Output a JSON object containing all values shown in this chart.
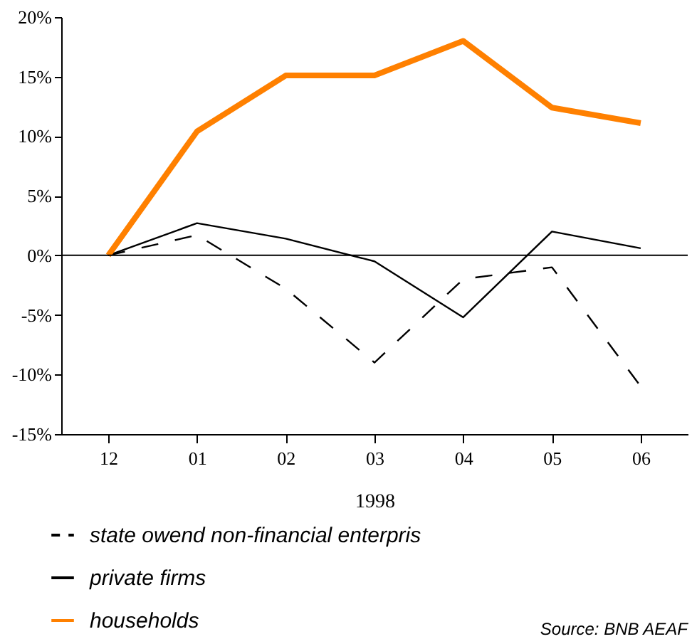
{
  "chart_data": {
    "type": "line",
    "xlabel": "1998",
    "categories": [
      "12",
      "01",
      "02",
      "03",
      "04",
      "05",
      "06"
    ],
    "series": [
      {
        "name": "state owend non-financial enterpris",
        "color": "#000000",
        "line_style": "dashed",
        "values": [
          0,
          1.7,
          -2.8,
          -9,
          -2,
          -1,
          -11
        ]
      },
      {
        "name": "private firms",
        "color": "#000000",
        "values": [
          0,
          2.7,
          1.4,
          -0.5,
          -5.2,
          2.0,
          0.6
        ]
      },
      {
        "name": "households",
        "color": "#ff8000",
        "values": [
          0,
          10.4,
          15.1,
          15.1,
          18.0,
          12.4,
          11.1
        ]
      }
    ],
    "ylim": [
      -15,
      20
    ],
    "yticks": [
      {
        "value": -15,
        "label": "-15%"
      },
      {
        "value": -10,
        "label": "-10%"
      },
      {
        "value": -5,
        "label": "-5%"
      },
      {
        "value": 0,
        "label": "0%"
      },
      {
        "value": 5,
        "label": "5%"
      },
      {
        "value": 10,
        "label": "10%"
      },
      {
        "value": 15,
        "label": "15%"
      },
      {
        "value": 20,
        "label": "20%"
      }
    ],
    "ref_lines": [
      {
        "axis": "y",
        "value": 0,
        "color": "#000000"
      }
    ],
    "legend": "bottom",
    "grid": false,
    "marker": "none",
    "annotations": [
      "Source: BNB AEAF"
    ]
  }
}
